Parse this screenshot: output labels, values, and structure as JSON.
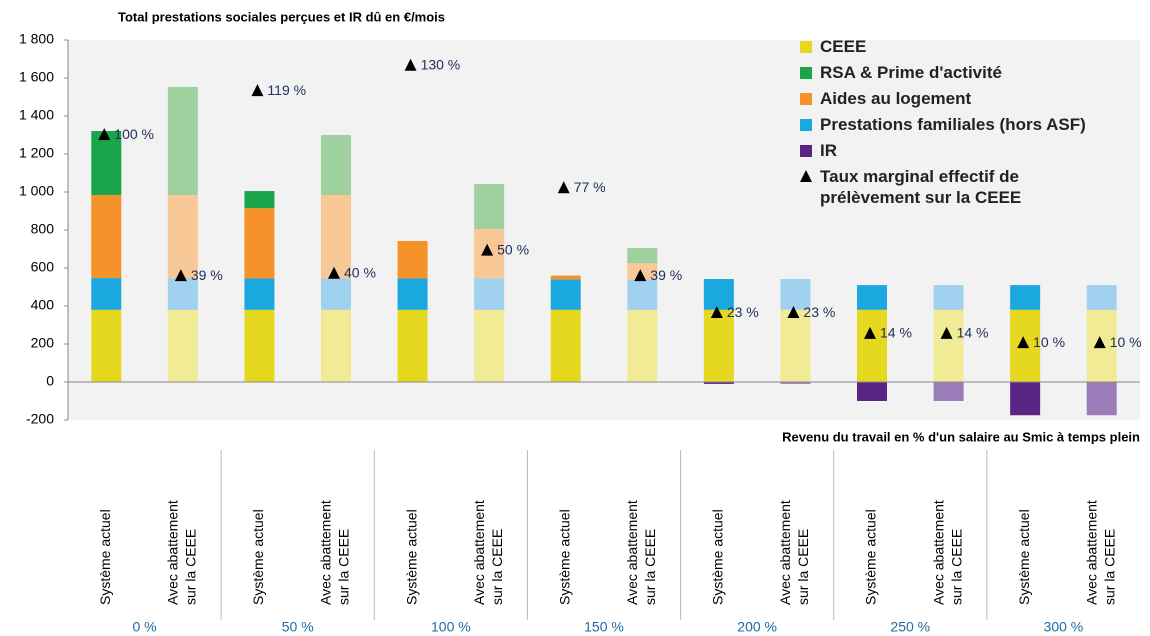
{
  "chart_data": {
    "type": "stacked_bar",
    "title": "Total prestations sociales perçues et IR dû en €/mois",
    "x_label": "Revenu du travail en % d'un salaire au Smic à temps plein",
    "categories": [
      [
        "Système actuel"
      ],
      [
        "Avec abattement",
        "sur la CEEE"
      ],
      [
        "Système actuel"
      ],
      [
        "Avec abattement",
        "sur la CEEE"
      ],
      [
        "Système actuel"
      ],
      [
        "Avec abattement",
        "sur la CEEE"
      ],
      [
        "Système actuel"
      ],
      [
        "Avec abattement",
        "sur la CEEE"
      ],
      [
        "Système actuel"
      ],
      [
        "Avec abattement",
        "sur la CEEE"
      ],
      [
        "Système actuel"
      ],
      [
        "Avec abattement",
        "sur la CEEE"
      ],
      [
        "Système actuel"
      ],
      [
        "Avec abattement",
        "sur la CEEE"
      ]
    ],
    "groups": [
      "0 %",
      "50 %",
      "100 %",
      "150 %",
      "200 %",
      "250 %",
      "300 %"
    ],
    "series": [
      {
        "name": "CEEE",
        "color": "#e6d81e",
        "light_color": "#f2eb95",
        "values": [
          380,
          380,
          380,
          380,
          380,
          380,
          380,
          380,
          380,
          380,
          380,
          380,
          380,
          380
        ]
      },
      {
        "name": "RSA & Prime d'activité",
        "color": "#1aa54b",
        "light_color": "#9fd19f",
        "values": [
          337,
          569,
          90,
          316,
          0,
          237,
          0,
          80,
          0,
          0,
          0,
          0,
          0,
          0
        ]
      },
      {
        "name": "Aides au logement",
        "color": "#f5922a",
        "light_color": "#f8c996",
        "values": [
          437,
          439,
          370,
          439,
          197,
          260,
          20,
          85,
          0,
          0,
          0,
          0,
          0,
          0
        ]
      },
      {
        "name": "Prestations familiales (hors ASF)",
        "color": "#1ba8df",
        "light_color": "#a0d2ef",
        "values": [
          167,
          165,
          165,
          165,
          165,
          165,
          160,
          160,
          162,
          162,
          130,
          130,
          130,
          130
        ]
      },
      {
        "name": "IR",
        "color": "#5b2586",
        "light_color": "#9a7cb8",
        "values": [
          0,
          0,
          0,
          0,
          0,
          0,
          0,
          0,
          -10,
          -10,
          -100,
          -100,
          -175,
          -175
        ]
      },
      {
        "name": "Taux marginal effectif de prélèvement sur la CEEE",
        "type": "marker",
        "axis": "y2",
        "color": "#000000",
        "values": [
          100,
          39,
          119,
          40,
          130,
          50,
          77,
          39,
          23,
          23,
          14,
          14,
          10,
          10
        ],
        "value_labels": [
          "100 %",
          "39 %",
          "119 %",
          "40 %",
          "130 %",
          "50 %",
          "77 %",
          "39 %",
          "23 %",
          "23 %",
          "14 %",
          "14 %",
          "10 %",
          "10 %"
        ]
      }
    ],
    "stack_order": [
      0,
      3,
      2,
      1
    ],
    "legend_order": [
      0,
      1,
      2,
      3,
      4,
      5
    ],
    "ylim": [
      -200,
      1800
    ],
    "yticks": [
      -200,
      0,
      200,
      400,
      600,
      800,
      {
        "value": 1000,
        "label": "1 000"
      },
      {
        "value": 1200,
        "label": "1 200"
      },
      {
        "value": 1400,
        "label": "1 400"
      },
      {
        "value": 1600,
        "label": "1 600"
      },
      {
        "value": 1800,
        "label": "1 800"
      }
    ],
    "y2lim": [
      -23.7,
      140.7
    ]
  }
}
